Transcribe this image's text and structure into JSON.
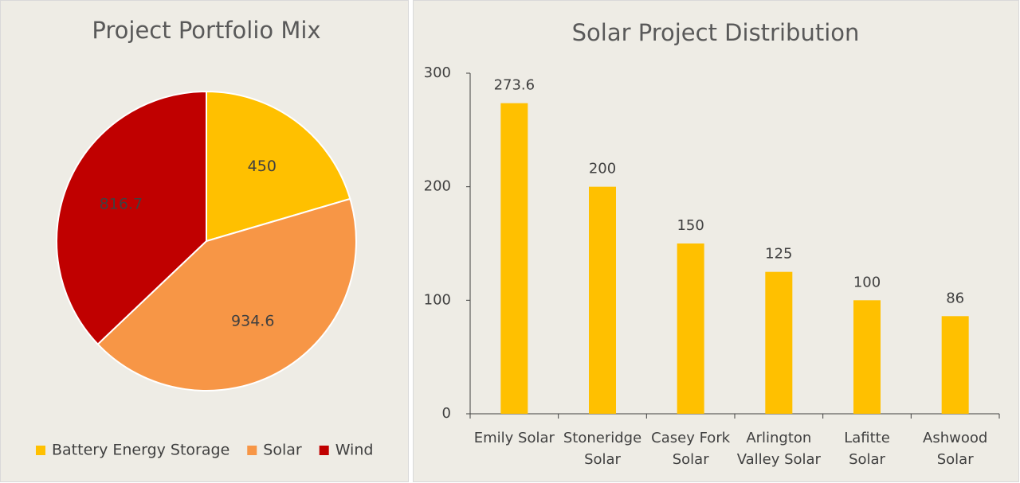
{
  "chart_data": [
    {
      "type": "pie",
      "title": "Project Portfolio Mix",
      "categories": [
        "Battery Energy Storage",
        "Solar",
        "Wind"
      ],
      "values": [
        450,
        934.6,
        816.7
      ],
      "colors": [
        "#FFC000",
        "#F79646",
        "#C00000"
      ],
      "legend": "bottom"
    },
    {
      "type": "bar",
      "title": "Solar Project Distribution",
      "categories": [
        [
          "Emily Solar"
        ],
        [
          "Stoneridge",
          "Solar"
        ],
        [
          "Casey Fork",
          "Solar"
        ],
        [
          "Arlington",
          "Valley Solar"
        ],
        [
          "Lafitte",
          "Solar"
        ],
        [
          "Ashwood",
          "Solar"
        ]
      ],
      "values": [
        273.6,
        200,
        150,
        125,
        100,
        86
      ],
      "color": "#FFC000",
      "ylim": [
        0,
        300
      ],
      "yticks": [
        0,
        100,
        200,
        300
      ],
      "grid": false
    }
  ]
}
